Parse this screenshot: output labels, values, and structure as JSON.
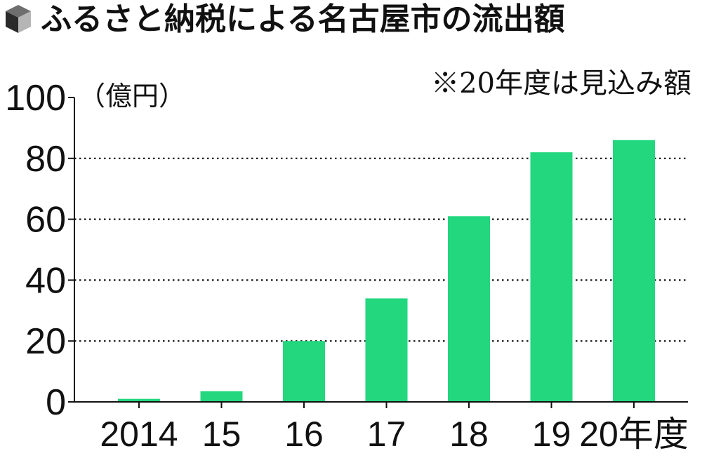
{
  "chart_data": {
    "type": "bar",
    "title": "ふるさと納税による名古屋市の流出額",
    "note": "※20年度は見込み額",
    "unit_label": "（億円）",
    "categories": [
      "2014",
      "15",
      "16",
      "17",
      "18",
      "19",
      "20年度"
    ],
    "values": [
      1,
      3.5,
      20,
      34,
      61,
      82,
      86
    ],
    "ylim": [
      0,
      100
    ],
    "yticks": [
      0,
      20,
      40,
      60,
      80,
      100
    ],
    "grid": "horizontal dotted",
    "colors": {
      "bar": "#22d77e",
      "text": "#111111",
      "grid": "#111111"
    },
    "icon": "cube-icon"
  }
}
